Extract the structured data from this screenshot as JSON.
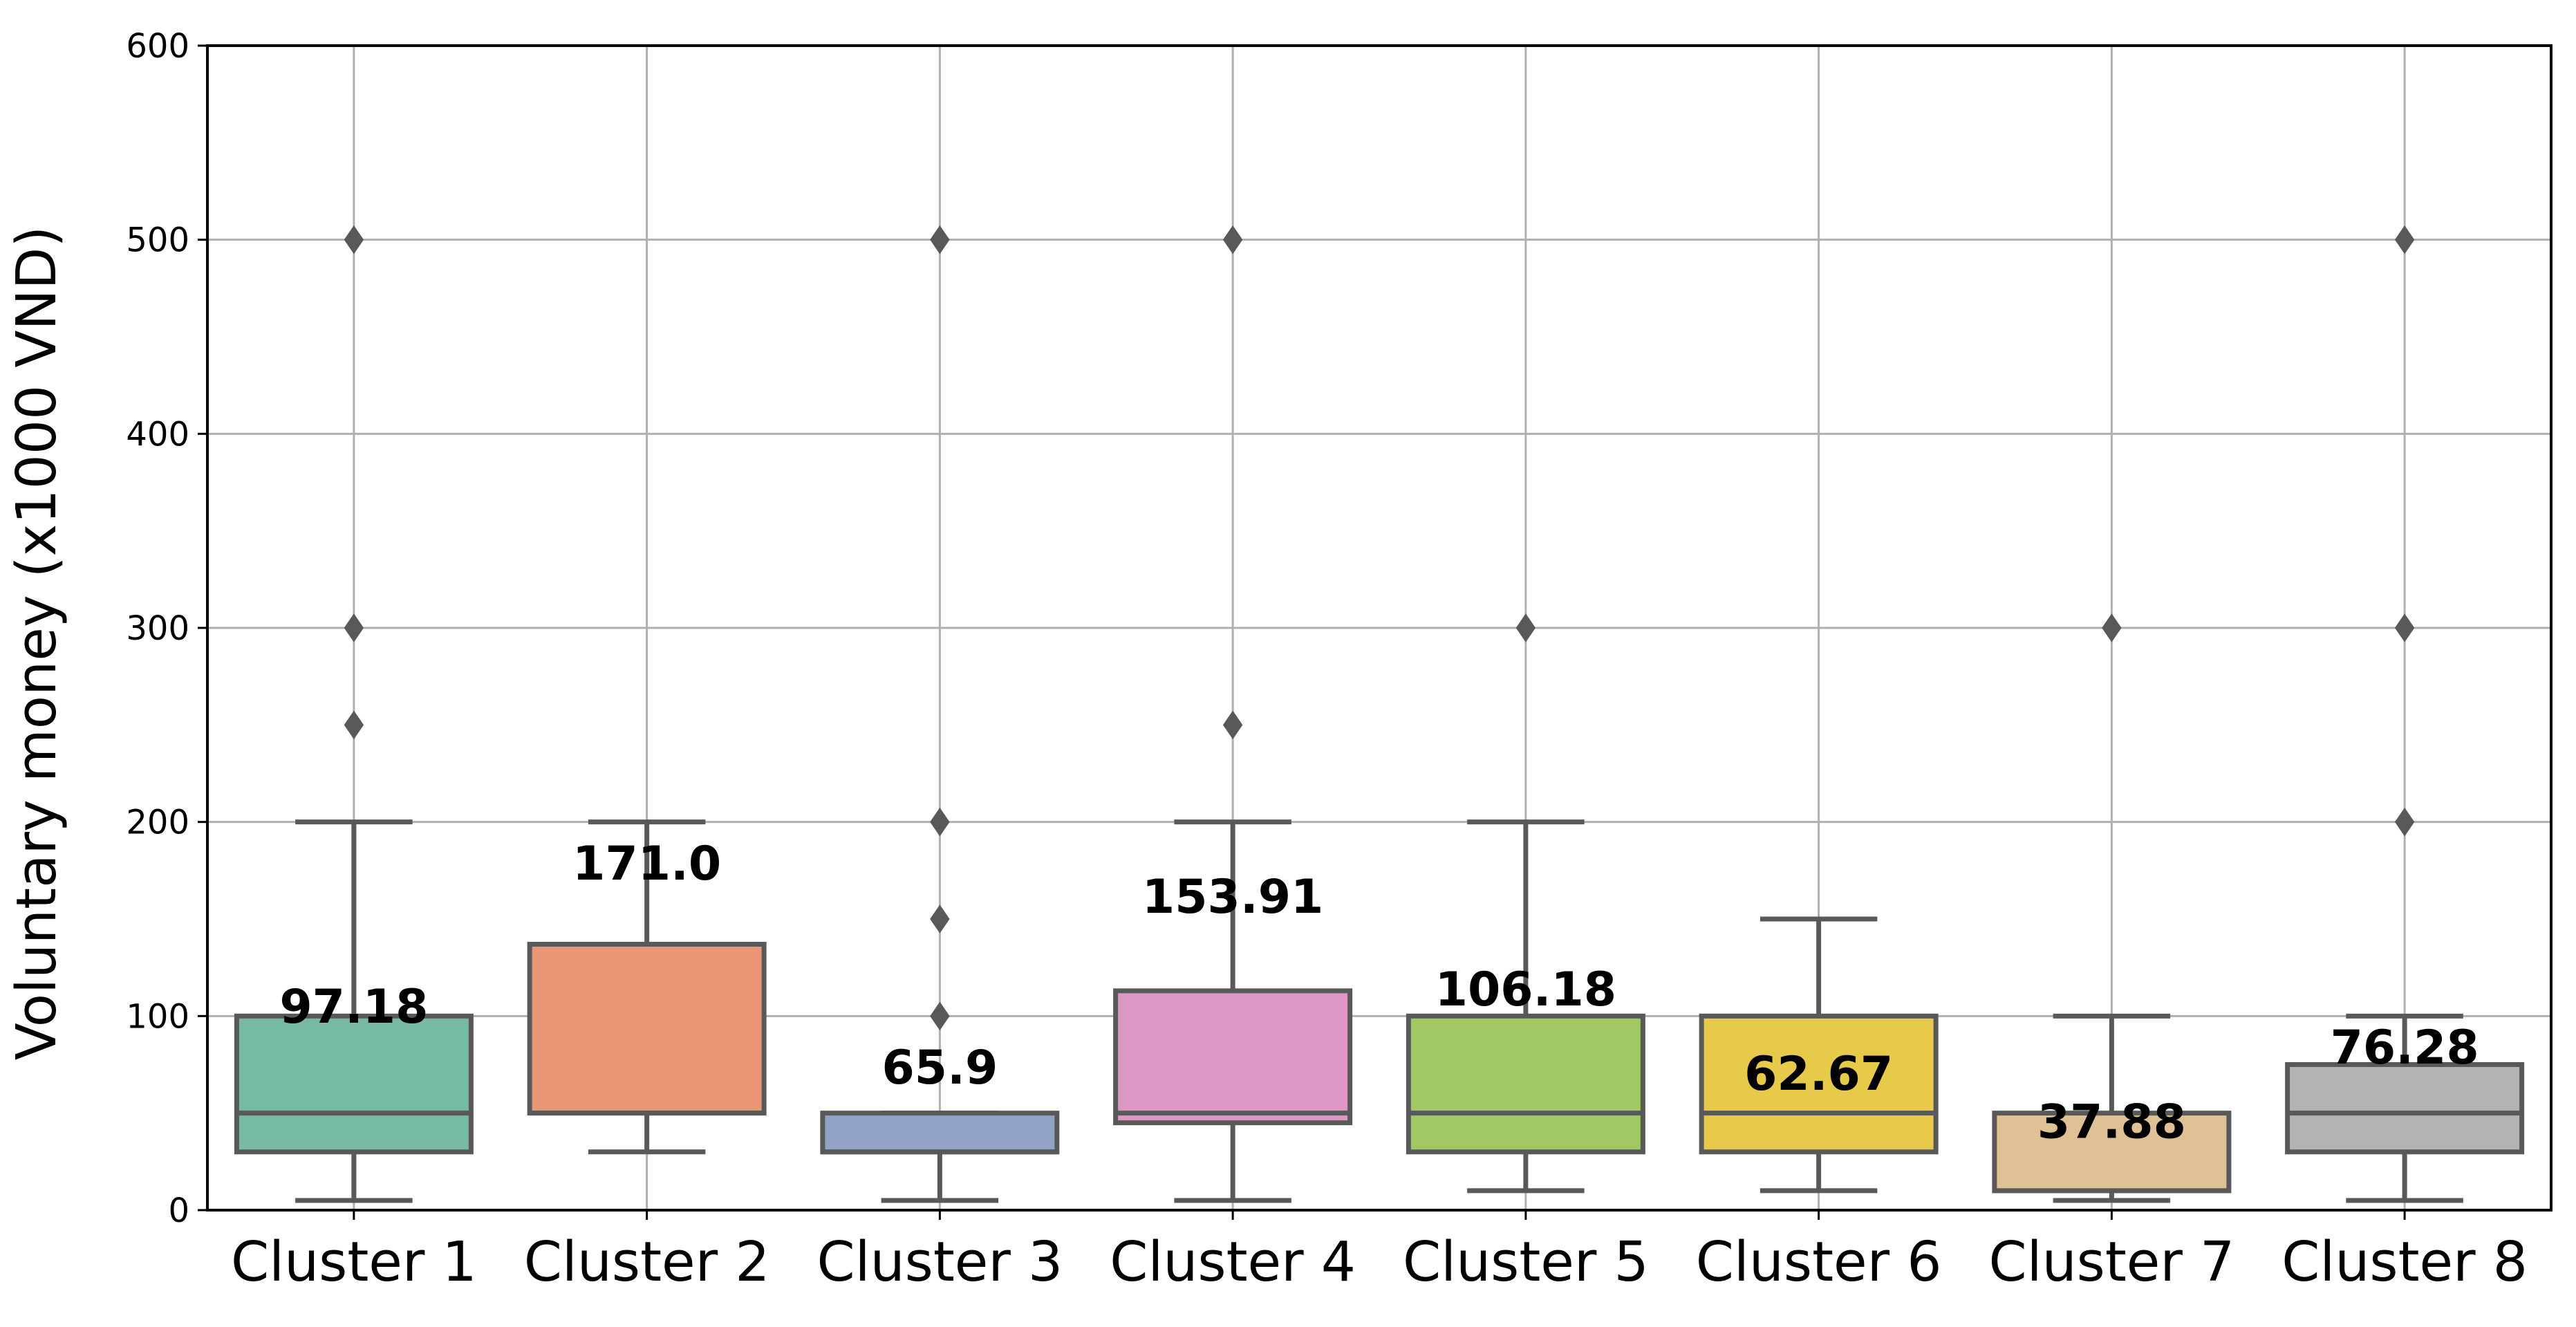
{
  "chart_data": {
    "type": "boxplot",
    "title": "",
    "xlabel": "",
    "ylabel": "Voluntary money (x1000 VND)",
    "ylim": [
      0,
      600
    ],
    "yticks": [
      0,
      100,
      200,
      300,
      400,
      500,
      600
    ],
    "grid": true,
    "legend": "none",
    "categories": [
      "Cluster 1",
      "Cluster 2",
      "Cluster 3",
      "Cluster 4",
      "Cluster 5",
      "Cluster 6",
      "Cluster 7",
      "Cluster 8"
    ],
    "boxes": [
      {
        "category": "Cluster 1",
        "whisker_low": 5,
        "q1": 30,
        "median": 50,
        "q3": 100,
        "whisker_high": 200,
        "outliers": [
          250,
          300,
          500
        ],
        "mean_label": "97.18",
        "mean": 97.18,
        "color": "#76b9a4"
      },
      {
        "category": "Cluster 2",
        "whisker_low": 30,
        "q1": 50,
        "median": 50,
        "q3": 137,
        "whisker_high": 200,
        "outliers": [],
        "mean_label": "171.0",
        "mean": 171.0,
        "color": "#ea9676"
      },
      {
        "category": "Cluster 3",
        "whisker_low": 5,
        "q1": 30,
        "median": 30,
        "q3": 50,
        "whisker_high": 50,
        "outliers": [
          100,
          150,
          200,
          500
        ],
        "mean_label": "65.9",
        "mean": 65.9,
        "color": "#93a3c8"
      },
      {
        "category": "Cluster 4",
        "whisker_low": 5,
        "q1": 45,
        "median": 50,
        "q3": 113,
        "whisker_high": 200,
        "outliers": [
          250,
          500
        ],
        "mean_label": "153.91",
        "mean": 153.91,
        "color": "#dc97c4"
      },
      {
        "category": "Cluster 5",
        "whisker_low": 10,
        "q1": 30,
        "median": 50,
        "q3": 100,
        "whisker_high": 200,
        "outliers": [
          300
        ],
        "mean_label": "106.18",
        "mean": 106.18,
        "color": "#a2c866"
      },
      {
        "category": "Cluster 6",
        "whisker_low": 10,
        "q1": 30,
        "median": 50,
        "q3": 100,
        "whisker_high": 150,
        "outliers": [],
        "mean_label": "62.67",
        "mean": 62.67,
        "color": "#e8ca4a"
      },
      {
        "category": "Cluster 7",
        "whisker_low": 5,
        "q1": 10,
        "median": 10,
        "q3": 50,
        "whisker_high": 100,
        "outliers": [
          300
        ],
        "mean_label": "37.88",
        "mean": 37.88,
        "color": "#dfc195"
      },
      {
        "category": "Cluster 8",
        "whisker_low": 5,
        "q1": 30,
        "median": 50,
        "q3": 75,
        "whisker_high": 100,
        "outliers": [
          200,
          300,
          500
        ],
        "mean_label": "76.28",
        "mean": 76.28,
        "color": "#b3b3b3"
      }
    ],
    "style": {
      "line_color": "#595959",
      "grid_color": "#b0b0b0",
      "axis_color": "#000000",
      "label_color": "#000000"
    }
  }
}
